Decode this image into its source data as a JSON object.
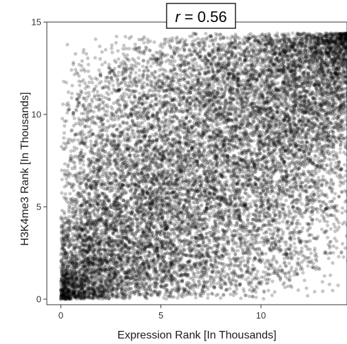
{
  "chart_data": {
    "type": "scatter",
    "title": "",
    "annotation": {
      "symbol": "r",
      "text": " = 0.56"
    },
    "xlabel": "Expression Rank [In Thousands]",
    "ylabel": "H3K4me3 Rank [In Thousands]",
    "xlim": [
      -0.7,
      14.3
    ],
    "ylim": [
      -0.3,
      15.0
    ],
    "x_ticks": [
      0,
      5,
      10
    ],
    "y_ticks": [
      0,
      5,
      10,
      15
    ],
    "grid": false,
    "legend": "none",
    "point_color": "#000000",
    "point_opacity": 0.22,
    "n_points": 14400,
    "rank_max": 14.4,
    "correlation": 0.56
  }
}
